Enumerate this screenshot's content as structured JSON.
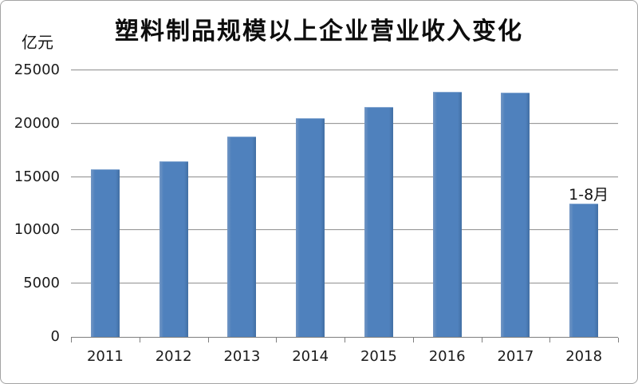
{
  "title": "塑料制品规模以上企业营业收入变化",
  "y_axis": {
    "unit": "亿元"
  },
  "annotation": {
    "text": "1-8月",
    "category": "2018"
  },
  "colors": {
    "bar": "#4f81bd",
    "gridline": "#9b9b9b",
    "axis": "#7f7f7f",
    "text": "#1b1b1b",
    "frame_border": "#a3a3a3",
    "background": "#ffffff"
  },
  "chart_data": {
    "type": "bar",
    "title": "塑料制品规模以上企业营业收入变化",
    "xlabel": "",
    "ylabel": "亿元",
    "categories": [
      "2011",
      "2012",
      "2013",
      "2014",
      "2015",
      "2016",
      "2017",
      "2018"
    ],
    "values": [
      15650,
      16400,
      18700,
      20450,
      21450,
      22900,
      22800,
      12400
    ],
    "ylim": [
      0,
      25000
    ],
    "y_ticks": [
      0,
      5000,
      10000,
      15000,
      20000,
      25000
    ],
    "grid": true,
    "legend": false,
    "annotations": [
      {
        "category": "2018",
        "text": "1-8月"
      }
    ]
  }
}
